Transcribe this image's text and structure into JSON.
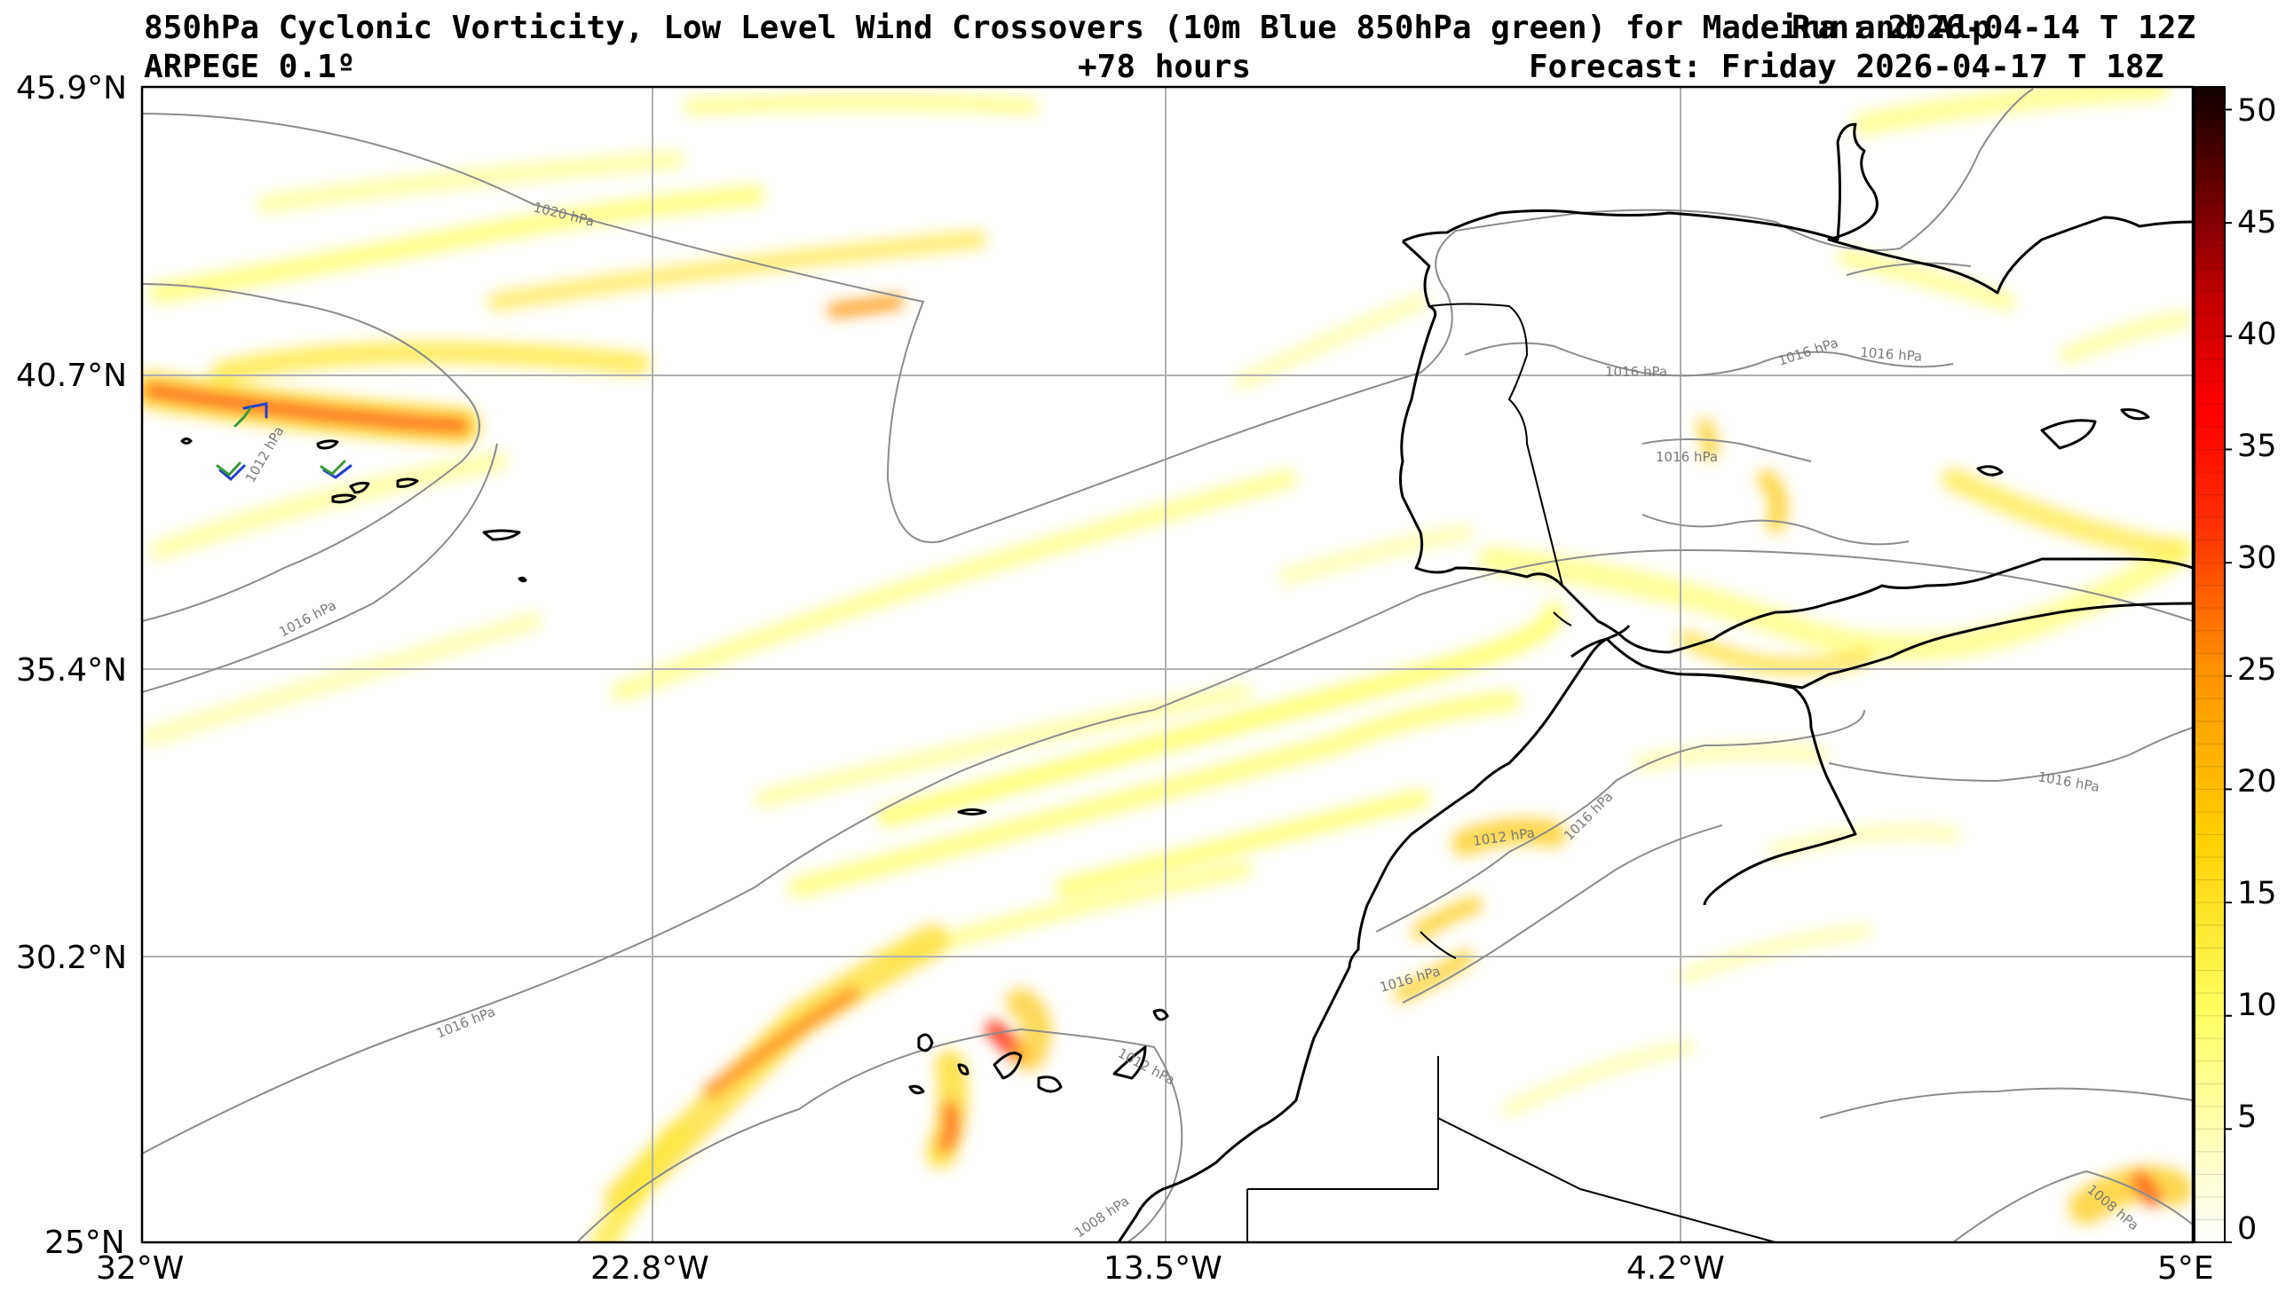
{
  "header": {
    "title_line1": "850hPa Cyclonic Vorticity, Low Level Wind Crossovers (10m Blue 850hPa green) for Madeira and Alp",
    "title_overlap": "Run: 2026-04-14 T 12Z",
    "model": "ARPEGE 0.1º",
    "lead_time": "+78 hours",
    "forecast": "Forecast: Friday 2026-04-17 T 18Z"
  },
  "map": {
    "lat_labels": [
      "45.9°N",
      "40.7°N",
      "35.4°N",
      "30.2°N",
      "25°N"
    ],
    "lon_labels": [
      "32°W",
      "22.8°W",
      "13.5°W",
      "4.2°W",
      "5°E"
    ],
    "isobar_labels": [
      "1020 hPa",
      "1016 hPa",
      "1016 hPa",
      "1012 hPa",
      "1016 hPa",
      "1012 hPa",
      "1016 hPa",
      "1016 hPa",
      "1016 hPa",
      "1012 hPa",
      "1016 hPa",
      "1016 hPa",
      "1008 hPa",
      "1008 hPa",
      "1016 hPa"
    ],
    "colors": {
      "coastline": "#000000",
      "isobar": "#8c8c8c",
      "grid": "#b0b0b0",
      "wind_10m": "#1f3fd0",
      "wind_850": "#3a9a3a",
      "vorticity_low": "#ffff80",
      "vorticity_mid": "#ffd000",
      "vorticity_high": "#ff2000"
    }
  },
  "colorbar": {
    "ticks": [
      "50",
      "45",
      "40",
      "35",
      "30",
      "25",
      "20",
      "15",
      "10",
      "5",
      "0"
    ],
    "range": [
      0,
      51
    ]
  }
}
